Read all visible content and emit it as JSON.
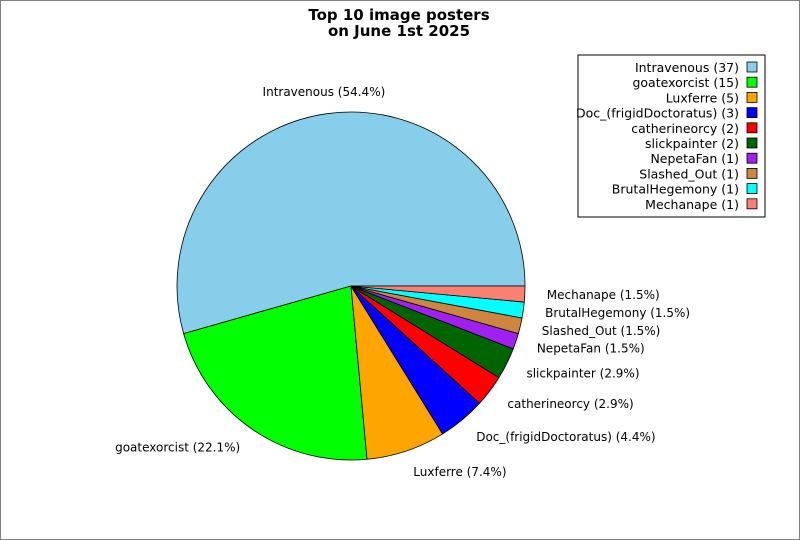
{
  "chart_data": {
    "type": "pie",
    "title": [
      "Top 10 image posters",
      "on June 1st 2025"
    ],
    "legend_position": "top-right",
    "slices": [
      {
        "name": "Intravenous",
        "value": 37,
        "percent_label": "Intravenous (54.4%)",
        "legend_label": "Intravenous (37)",
        "color": "#87ceeb"
      },
      {
        "name": "goatexorcist",
        "value": 15,
        "percent_label": "goatexorcist (22.1%)",
        "legend_label": "goatexorcist (15)",
        "color": "#00ff00"
      },
      {
        "name": "Luxferre",
        "value": 5,
        "percent_label": "Luxferre (7.4%)",
        "legend_label": "Luxferre (5)",
        "color": "#ffa500"
      },
      {
        "name": "Doc_(frigidDoctoratus)",
        "value": 3,
        "percent_label": "Doc_(frigidDoctoratus) (4.4%)",
        "legend_label": "Doc_(frigidDoctoratus) (3)",
        "color": "#0000ff"
      },
      {
        "name": "catherineorcy",
        "value": 2,
        "percent_label": "catherineorcy (2.9%)",
        "legend_label": "catherineorcy (2)",
        "color": "#ff0000"
      },
      {
        "name": "slickpainter",
        "value": 2,
        "percent_label": "slickpainter (2.9%)",
        "legend_label": "slickpainter (2)",
        "color": "#006400"
      },
      {
        "name": "NepetaFan",
        "value": 1,
        "percent_label": "NepetaFan (1.5%)",
        "legend_label": "NepetaFan (1)",
        "color": "#a020f0"
      },
      {
        "name": "Slashed_Out",
        "value": 1,
        "percent_label": "Slashed_Out (1.5%)",
        "legend_label": "Slashed_Out (1)",
        "color": "#cd853f"
      },
      {
        "name": "BrutalHegemony",
        "value": 1,
        "percent_label": "BrutalHegemony (1.5%)",
        "legend_label": "BrutalHegemony (1)",
        "color": "#00ffff"
      },
      {
        "name": "Mechanape",
        "value": 1,
        "percent_label": "Mechanape (1.5%)",
        "legend_label": "Mechanape (1)",
        "color": "#fa8072"
      }
    ]
  }
}
